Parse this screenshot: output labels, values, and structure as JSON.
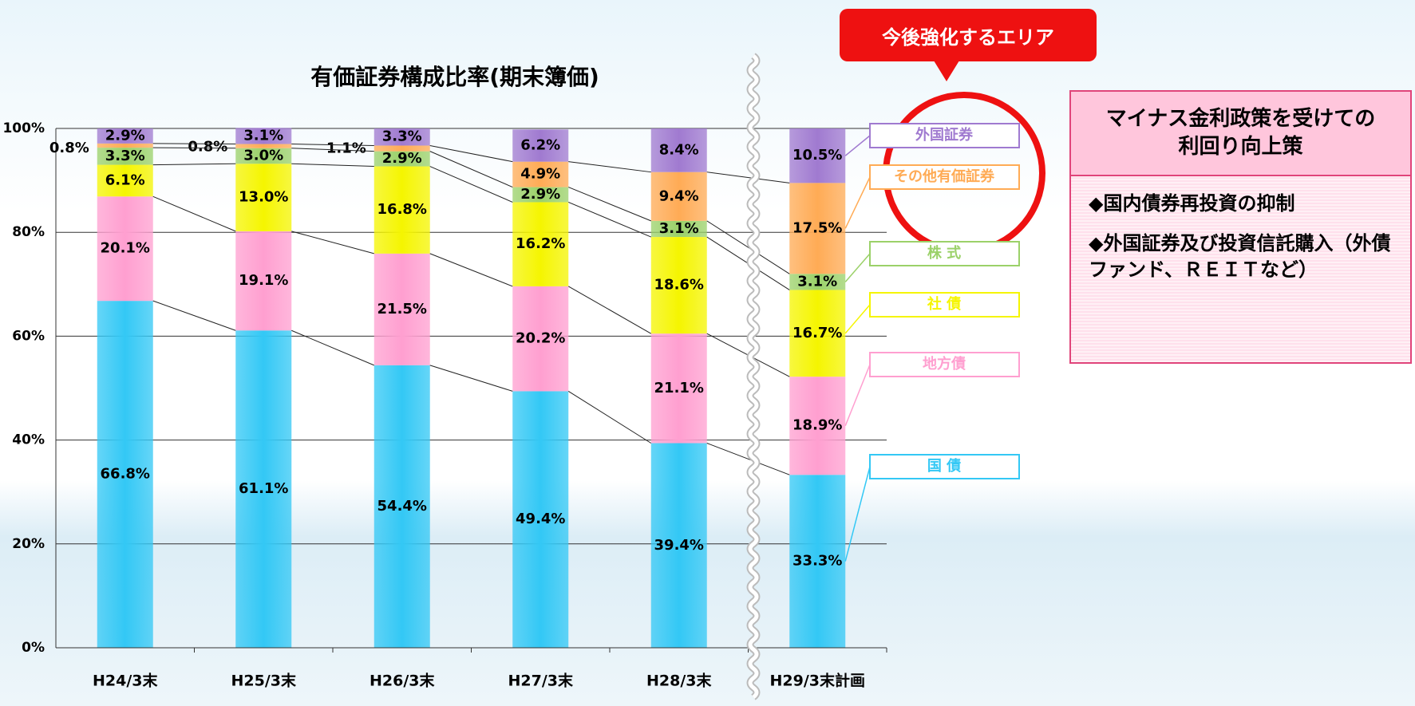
{
  "chart_data": {
    "type": "stacked_bar",
    "title": "有価証券構成比率(期末簿価)",
    "categories": [
      "H24/3末",
      "H25/3末",
      "H26/3末",
      "H27/3末",
      "H28/3末",
      "H29/3末計画"
    ],
    "series": [
      {
        "name": "国 債",
        "color": "#33c8f5",
        "values": [
          66.8,
          61.1,
          54.4,
          49.4,
          39.4,
          33.3
        ],
        "value_labels": [
          "66.8%",
          "61.1%",
          "54.4%",
          "49.4%",
          "39.4%",
          "33.3%"
        ]
      },
      {
        "name": "地方債",
        "color": "#ff9fd0",
        "values": [
          20.1,
          19.1,
          21.5,
          20.2,
          21.1,
          18.9
        ],
        "value_labels": [
          "20.1%",
          "19.1%",
          "21.5%",
          "20.2%",
          "21.1%",
          "18.9%"
        ]
      },
      {
        "name": "社 債",
        "color": "#f5f500",
        "values": [
          6.1,
          13.0,
          16.8,
          16.2,
          18.6,
          16.7
        ],
        "value_labels": [
          "6.1%",
          "13.0%",
          "16.8%",
          "16.2%",
          "18.6%",
          "16.7%"
        ]
      },
      {
        "name": "株 式",
        "color": "#9bd169",
        "values": [
          3.3,
          3.0,
          2.9,
          2.9,
          3.1,
          3.1
        ],
        "value_labels": [
          "3.3%",
          "3.0%",
          "2.9%",
          "2.9%",
          "3.1%",
          "3.1%"
        ]
      },
      {
        "name": "その他有価証券",
        "color": "#ffab55",
        "values": [
          0.8,
          0.8,
          1.1,
          4.9,
          9.4,
          17.5
        ],
        "value_labels": [
          "0.8%",
          "0.8%",
          "1.1%",
          "4.9%",
          "9.4%",
          "17.5%"
        ]
      },
      {
        "name": "外国証券",
        "color": "#a07ad0",
        "values": [
          2.9,
          3.1,
          3.3,
          6.2,
          8.4,
          10.5
        ],
        "value_labels": [
          "2.9%",
          "3.1%",
          "3.3%",
          "6.2%",
          "8.4%",
          "10.5%"
        ]
      }
    ],
    "ylim": [
      0,
      100
    ],
    "yticks": [
      {
        "value": 0,
        "label": "0%"
      },
      {
        "value": 20,
        "label": "20%"
      },
      {
        "value": 40,
        "label": "40%"
      },
      {
        "value": 60,
        "label": "60%"
      },
      {
        "value": 80,
        "label": "80%"
      },
      {
        "value": 100,
        "label": "100%"
      }
    ],
    "grid": true
  },
  "annotations": {
    "callout": "今後強化するエリア",
    "panel_title": "マイナス金利政策を受けての利回り向上策",
    "panel_items": [
      "◆国内債券再投資の抑制",
      "◆外国証券及び投資信託購入（外債ファンド、ＲＥＩＴなど）"
    ]
  }
}
